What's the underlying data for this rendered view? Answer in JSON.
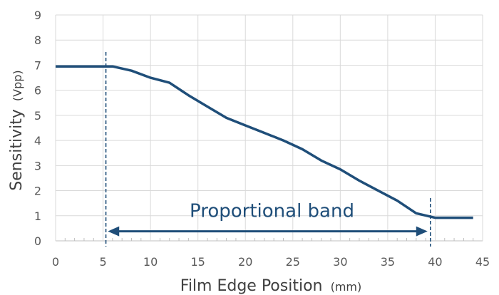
{
  "chart_data": {
    "type": "line",
    "xlabel": "Film Edge Position",
    "xlabel_unit": "(mm)",
    "ylabel": "Sensitivity",
    "ylabel_unit": "(Vpp)",
    "xlim": [
      0,
      45
    ],
    "ylim": [
      0,
      9
    ],
    "x_ticks": [
      0,
      5,
      10,
      15,
      20,
      25,
      30,
      35,
      40,
      45
    ],
    "y_ticks": [
      0,
      1,
      2,
      3,
      4,
      5,
      6,
      7,
      8,
      9
    ],
    "grid": true,
    "series": [
      {
        "color": "#1f4e79",
        "x": [
          0,
          6,
          8,
          10,
          12,
          14,
          16,
          18,
          20,
          22,
          24,
          26,
          28,
          30,
          32,
          34,
          36,
          38,
          40,
          42,
          44
        ],
        "y": [
          6.95,
          6.95,
          6.78,
          6.5,
          6.3,
          5.8,
          5.35,
          4.9,
          4.6,
          4.3,
          4.0,
          3.65,
          3.2,
          2.85,
          2.4,
          2.0,
          1.6,
          1.1,
          0.92,
          0.92,
          0.92
        ]
      }
    ],
    "markers": {
      "dashed_lines_x": [
        5.3,
        39.5
      ]
    },
    "annotation": {
      "text": "Proportional band",
      "arrow_from_x": 5.5,
      "arrow_to_x": 39.2,
      "arrow_y": 0.38,
      "text_x": 22.8,
      "text_y": 1.2
    }
  }
}
